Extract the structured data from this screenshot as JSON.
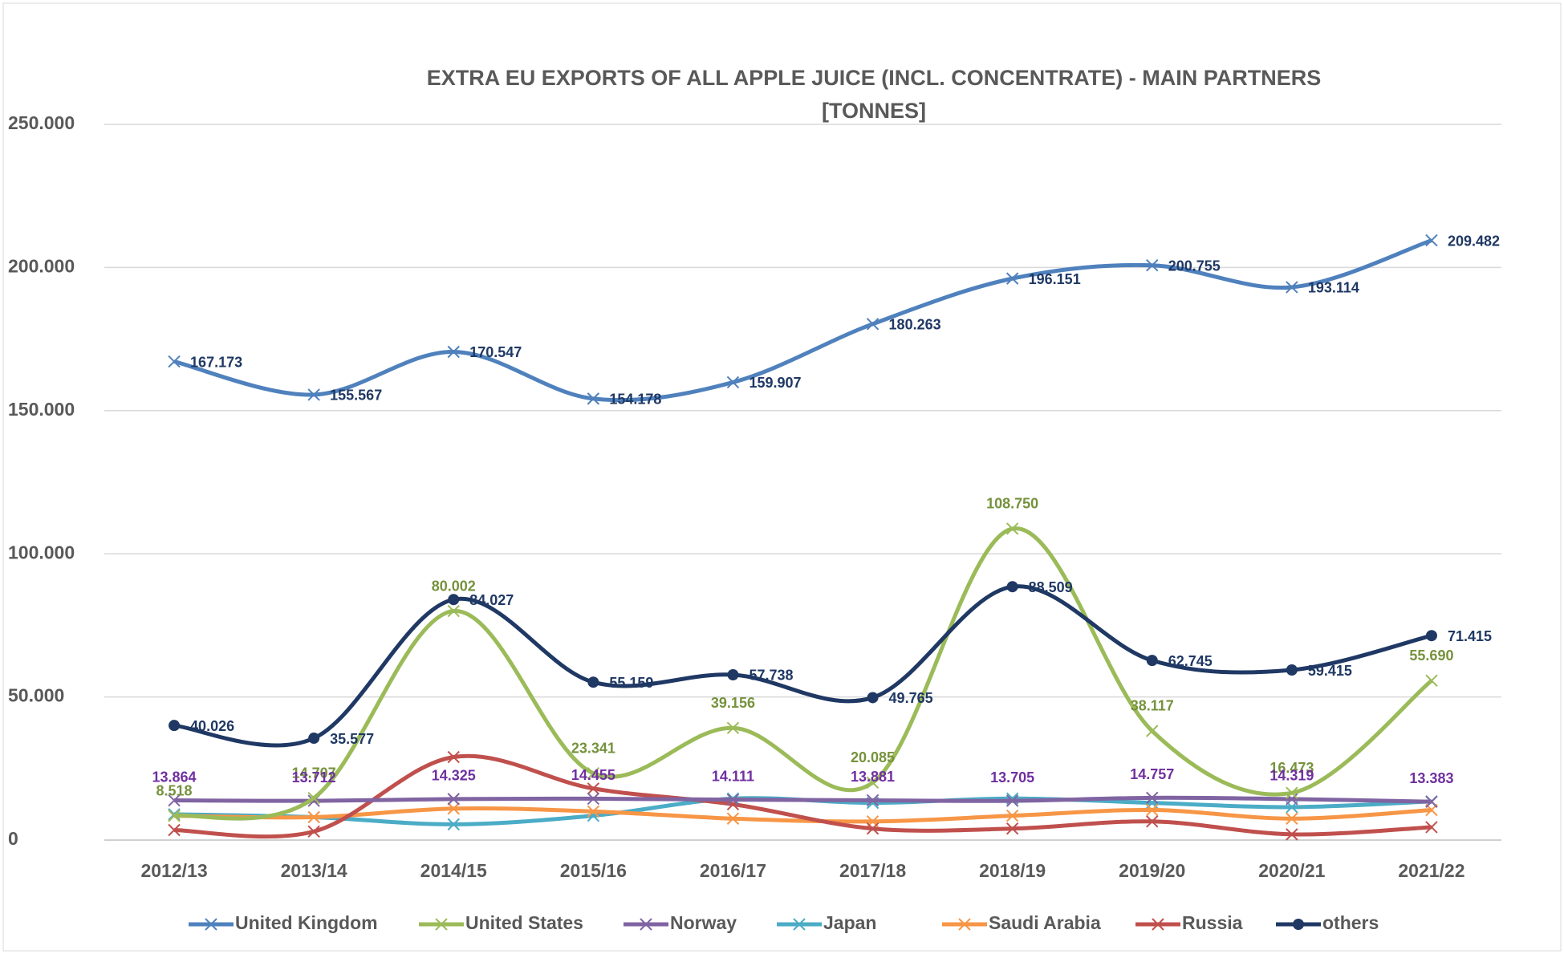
{
  "chart_data": {
    "type": "line",
    "title": "EXTRA EU EXPORTS OF ALL APPLE JUICE (INCL. CONCENTRATE) - MAIN PARTNERS",
    "subtitle": "[TONNES]",
    "categories": [
      "2012/13",
      "2013/14",
      "2014/15",
      "2015/16",
      "2016/17",
      "2017/18",
      "2018/19",
      "2019/20",
      "2020/21",
      "2021/22"
    ],
    "ylim": [
      0,
      250000
    ],
    "yticks": [
      0,
      {
        "value": 50000,
        "label": "50.000"
      },
      {
        "value": 100000,
        "label": "100.000"
      },
      {
        "value": 150000,
        "label": "150.000"
      },
      {
        "value": 200000,
        "label": "200.000"
      },
      {
        "value": 250000,
        "label": "250.000"
      }
    ],
    "grid": true,
    "legend": "bottom",
    "series": [
      {
        "name": "United Kingdom",
        "color": "#4f81bd",
        "marker": "x",
        "values": [
          167173,
          155567,
          170547,
          154178,
          159907,
          180263,
          196151,
          200755,
          193114,
          209482
        ],
        "value_labels": [
          "167.173",
          "155.567",
          "170.547",
          "154.178",
          "159.907",
          "180.263",
          "196.151",
          "200.755",
          "193.114",
          "209.482"
        ]
      },
      {
        "name": "United States",
        "color": "#9bbb59",
        "marker": "x",
        "values": [
          8518,
          14707,
          80002,
          23341,
          39156,
          20085,
          108750,
          38117,
          16473,
          55690
        ],
        "value_labels": [
          "8.518",
          "14.707",
          "80.002",
          "23.341",
          "39.156",
          "20.085",
          "108.750",
          "38.117",
          "16.473",
          "55.690"
        ]
      },
      {
        "name": "Norway",
        "color": "#8064a2",
        "marker": "x",
        "values": [
          13864,
          13712,
          14325,
          14455,
          14111,
          13881,
          13705,
          14757,
          14319,
          13383
        ],
        "value_labels": [
          "13.864",
          "13.712",
          "14.325",
          "14.455",
          "14.111",
          "13.881",
          "13.705",
          "14.757",
          "14.319",
          "13.383"
        ]
      },
      {
        "name": "Japan",
        "color": "#4bacc6",
        "marker": "x",
        "values": [
          9000,
          8000,
          5500,
          8500,
          14500,
          13000,
          14500,
          13000,
          11500,
          13500
        ]
      },
      {
        "name": "Saudi Arabia",
        "color": "#f79646",
        "marker": "x",
        "values": [
          8500,
          8000,
          11000,
          10000,
          7500,
          6500,
          8500,
          10500,
          7500,
          10500
        ]
      },
      {
        "name": "Russia",
        "color": "#c0504d",
        "marker": "x",
        "values": [
          3500,
          3000,
          29000,
          18000,
          12500,
          4000,
          4000,
          6500,
          2000,
          4500
        ]
      },
      {
        "name": "others",
        "color": "#1f3864",
        "marker": "circle",
        "values": [
          40026,
          35577,
          84027,
          55159,
          57738,
          49765,
          88509,
          62745,
          59415,
          71415
        ],
        "value_labels": [
          "40.026",
          "35.577",
          "84.027",
          "55.159",
          "57.738",
          "49.765",
          "88.509",
          "62.745",
          "59.415",
          "71.415"
        ]
      }
    ]
  }
}
